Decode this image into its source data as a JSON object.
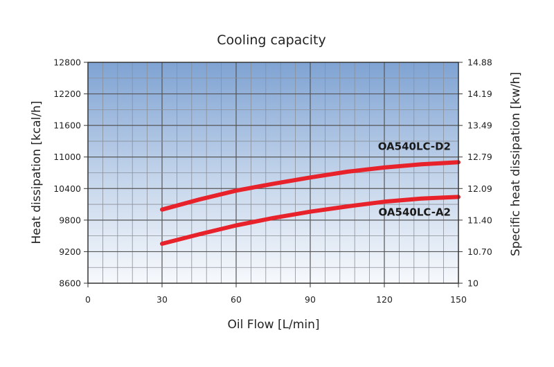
{
  "chart_data": {
    "type": "line",
    "title": "Cooling capacity",
    "xlabel": "Oil Flow [L/min]",
    "ylabel": "Heat dissipation [kcal/h]",
    "ylabel_right": "Specific heat dissipation [kw/h]",
    "xlim": [
      0,
      150
    ],
    "ylim": [
      8600,
      12800
    ],
    "xticks": [
      "0",
      "30",
      "60",
      "90",
      "120",
      "150"
    ],
    "yticks": [
      "8600",
      "9200",
      "9800",
      "10400",
      "11000",
      "11600",
      "12200",
      "12800"
    ],
    "yticks_right": [
      "10",
      "10.70",
      "11.40",
      "12.09",
      "12.79",
      "13.49",
      "14.19",
      "14.88"
    ],
    "grid": true,
    "background": "vertical gradient from light blue to white",
    "line_color": "#e8222a",
    "series": [
      {
        "name": "OA540LC-D2",
        "x": [
          30,
          45,
          60,
          75,
          90,
          105,
          120,
          135,
          150
        ],
        "y": [
          10000,
          10190,
          10360,
          10490,
          10610,
          10720,
          10800,
          10860,
          10900
        ]
      },
      {
        "name": "OA540LC-A2",
        "x": [
          30,
          45,
          60,
          75,
          90,
          105,
          120,
          135,
          150
        ],
        "y": [
          9350,
          9530,
          9700,
          9840,
          9960,
          10060,
          10150,
          10210,
          10240
        ]
      }
    ]
  }
}
